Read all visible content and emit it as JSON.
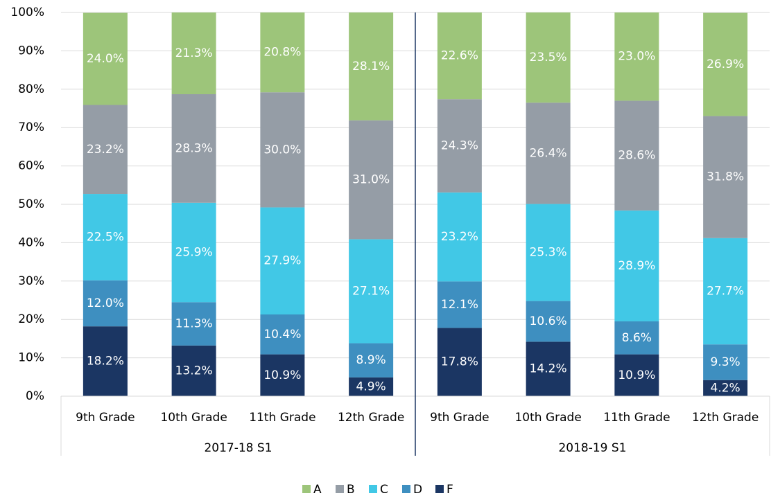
{
  "chart_data": {
    "type": "stacked_bar",
    "categories": [
      "9th Grade",
      "10th Grade",
      "11th Grade",
      "12th Grade",
      "9th Grade",
      "10th Grade",
      "11th Grade",
      "12th Grade"
    ],
    "group_labels": [
      "2017-18 S1",
      "2018-19 S1"
    ],
    "series": [
      {
        "name": "F",
        "color": "#1b3663",
        "values": [
          18.2,
          13.2,
          10.9,
          4.9,
          17.8,
          14.2,
          10.9,
          4.2
        ],
        "value_labels": [
          "18.2%",
          "13.2%",
          "10.9%",
          "4.9%",
          "17.8%",
          "14.2%",
          "10.9%",
          "4.2%"
        ]
      },
      {
        "name": "D",
        "color": "#3e8fc0",
        "values": [
          12.0,
          11.3,
          10.4,
          8.9,
          12.1,
          10.6,
          8.6,
          9.3
        ],
        "value_labels": [
          "12.0%",
          "11.3%",
          "10.4%",
          "8.9%",
          "12.1%",
          "10.6%",
          "8.6%",
          "9.3%"
        ]
      },
      {
        "name": "C",
        "color": "#41c8e6",
        "values": [
          22.5,
          25.9,
          27.9,
          27.1,
          23.2,
          25.3,
          28.9,
          27.7
        ],
        "value_labels": [
          "22.5%",
          "25.9%",
          "27.9%",
          "27.1%",
          "23.2%",
          "25.3%",
          "28.9%",
          "27.7%"
        ]
      },
      {
        "name": "B",
        "color": "#959da6",
        "values": [
          23.2,
          28.3,
          30.0,
          31.0,
          24.3,
          26.4,
          28.6,
          31.8
        ],
        "value_labels": [
          "23.2%",
          "28.3%",
          "30.0%",
          "31.0%",
          "24.3%",
          "26.4%",
          "28.6%",
          "31.8%"
        ]
      },
      {
        "name": "A",
        "color": "#9dc57a",
        "values": [
          24.0,
          21.3,
          20.8,
          28.1,
          22.6,
          23.5,
          23.0,
          26.9
        ],
        "value_labels": [
          "24.0%",
          "21.3%",
          "20.8%",
          "28.1%",
          "22.6%",
          "23.5%",
          "23.0%",
          "26.9%"
        ]
      }
    ],
    "ylim": [
      0,
      100
    ],
    "yticks": [
      {
        "value": 0,
        "label": "0%"
      },
      {
        "value": 10,
        "label": "10%"
      },
      {
        "value": 20,
        "label": "20%"
      },
      {
        "value": 30,
        "label": "30%"
      },
      {
        "value": 40,
        "label": "40%"
      },
      {
        "value": 50,
        "label": "50%"
      },
      {
        "value": 60,
        "label": "60%"
      },
      {
        "value": 70,
        "label": "70%"
      },
      {
        "value": 80,
        "label": "80%"
      },
      {
        "value": 90,
        "label": "90%"
      },
      {
        "value": 100,
        "label": "100%"
      }
    ],
    "grid": true,
    "legend": "bottom"
  }
}
